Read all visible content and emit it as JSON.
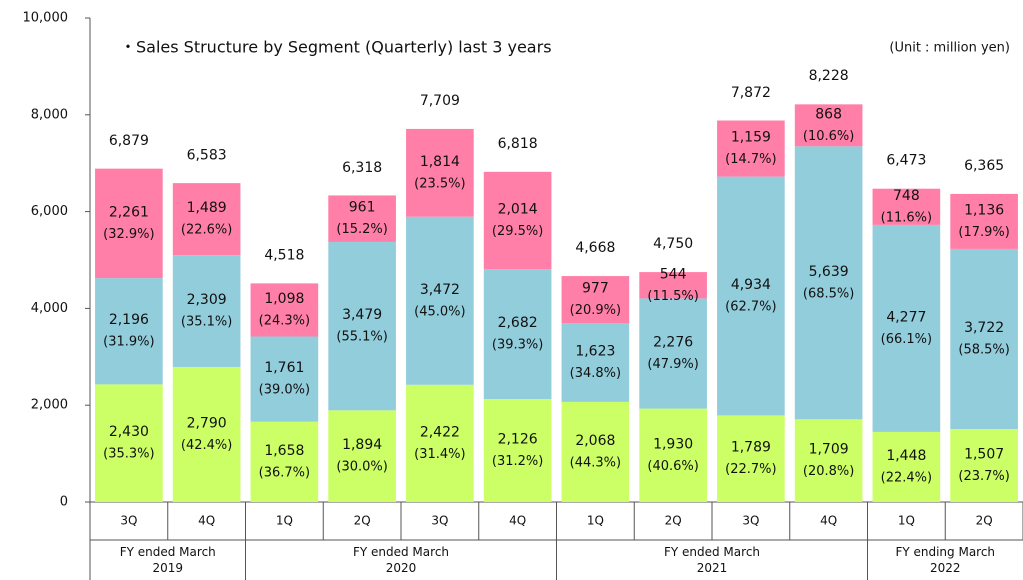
{
  "chart_data": {
    "type": "stacked_bar",
    "title": "・Sales Structure by Segment (Quarterly) last 3 years",
    "unit_note": "(Unit : million yen)",
    "categories": [
      "3Q",
      "4Q",
      "1Q",
      "2Q",
      "3Q",
      "4Q",
      "1Q",
      "2Q",
      "3Q",
      "4Q",
      "1Q",
      "2Q"
    ],
    "groups": [
      "FY ended March 2019",
      "FY ended March 2020",
      "FY ended March 2021",
      "FY ending March 2022"
    ],
    "group_spans": [
      2,
      4,
      4,
      2
    ],
    "ylim": [
      0,
      10000
    ],
    "yticks": [
      0,
      {
        "value": 2000,
        "label": "2,000"
      },
      {
        "value": 4000,
        "label": "4,000"
      },
      {
        "value": 6000,
        "label": "6,000"
      },
      {
        "value": 8000,
        "label": "8,000"
      },
      {
        "value": 10000,
        "label": "10,000"
      }
    ],
    "grid": false,
    "series": [
      {
        "color": "#ccff66",
        "values": [
          2430,
          2790,
          1658,
          1894,
          2422,
          2126,
          2068,
          1930,
          1789,
          1709,
          1448,
          1507
        ],
        "value_labels": [
          "2,430",
          "2,790",
          "1,658",
          "1,894",
          "2,422",
          "2,126",
          "2,068",
          "1,930",
          "1,789",
          "1,709",
          "1,448",
          "1,507"
        ],
        "share_labels": [
          "(35.3%)",
          "(42.4%)",
          "(36.7%)",
          "(30.0%)",
          "(31.4%)",
          "(31.2%)",
          "(44.3%)",
          "(40.6%)",
          "(22.7%)",
          "(20.8%)",
          "(22.4%)",
          "(23.7%)"
        ]
      },
      {
        "color": "#92cddc",
        "values": [
          2196,
          2309,
          1761,
          3479,
          3472,
          2682,
          1623,
          2276,
          4934,
          5639,
          4277,
          3722
        ],
        "value_labels": [
          "2,196",
          "2,309",
          "1,761",
          "3,479",
          "3,472",
          "2,682",
          "1,623",
          "2,276",
          "4,934",
          "5,639",
          "4,277",
          "3,722"
        ],
        "share_labels": [
          "(31.9%)",
          "(35.1%)",
          "(39.0%)",
          "(55.1%)",
          "(45.0%)",
          "(39.3%)",
          "(34.8%)",
          "(47.9%)",
          "(62.7%)",
          "(68.5%)",
          "(66.1%)",
          "(58.5%)"
        ]
      },
      {
        "color": "#ff7fa8",
        "values": [
          2261,
          1489,
          1098,
          961,
          1814,
          2014,
          977,
          544,
          1159,
          868,
          748,
          1136
        ],
        "value_labels": [
          "2,261",
          "1,489",
          "1,098",
          "961",
          "1,814",
          "2,014",
          "977",
          "544",
          "1,159",
          "868",
          "748",
          "1,136"
        ],
        "share_labels": [
          "(32.9%)",
          "(22.6%)",
          "(24.3%)",
          "(15.2%)",
          "(23.5%)",
          "(29.5%)",
          "(20.9%)",
          "(11.5%)",
          "(14.7%)",
          "(10.6%)",
          "(11.6%)",
          "(17.9%)"
        ]
      }
    ],
    "totals": [
      6879,
      6583,
      4518,
      6318,
      7709,
      6818,
      4668,
      4750,
      7872,
      8228,
      6473,
      6365
    ],
    "total_labels": [
      "6,879",
      "6,583",
      "4,518",
      "6,318",
      "7,709",
      "6,818",
      "4,668",
      "4,750",
      "7,872",
      "8,228",
      "6,473",
      "6,365"
    ]
  }
}
